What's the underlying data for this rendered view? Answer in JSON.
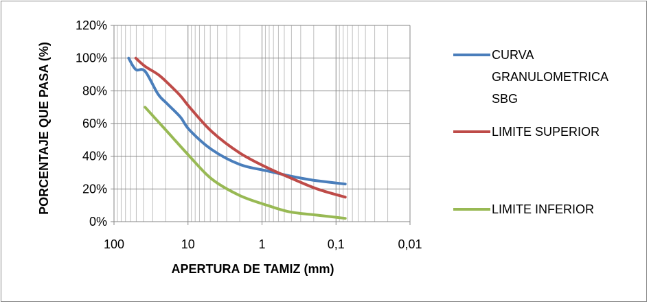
{
  "chart_data": {
    "type": "line",
    "xlabel": "APERTURA DE TAMIZ (mm)",
    "ylabel": "PORCENTAJE QUE PASA (%)",
    "x_scale": "log",
    "x_reversed": true,
    "xlim": [
      100,
      0.01
    ],
    "ylim": [
      0,
      120
    ],
    "x_ticks": [
      100,
      10,
      1,
      0.1,
      0.01
    ],
    "x_tick_labels": [
      "100",
      "10",
      "1",
      "0,1",
      "0,01"
    ],
    "y_ticks": [
      0,
      20,
      40,
      60,
      80,
      100,
      120
    ],
    "y_tick_labels": [
      "0%",
      "20%",
      "40%",
      "60%",
      "80%",
      "100%",
      "120%"
    ],
    "grid": true,
    "legend_position": "right",
    "series": [
      {
        "name": "CURVA GRANULOMETRICA SBG",
        "color": "#4a7ebb",
        "legend_lines": [
          "CURVA",
          "GRANULOMETRICA",
          "SBG"
        ],
        "x": [
          63.5,
          50.8,
          38.1,
          25.4,
          19.05,
          12.7,
          9.525,
          4.76,
          2.0,
          0.85,
          0.425,
          0.25,
          0.18,
          0.075
        ],
        "y": [
          100,
          93,
          92,
          78,
          72,
          64,
          56,
          44,
          35,
          31,
          28,
          26,
          25,
          23
        ]
      },
      {
        "name": "LIMITE SUPERIOR",
        "color": "#be4b48",
        "legend_lines": [
          "LIMITE SUPERIOR"
        ],
        "x": [
          50.8,
          38.1,
          25.4,
          19.05,
          12.7,
          9.525,
          4.76,
          2.0,
          0.85,
          0.425,
          0.18,
          0.075
        ],
        "y": [
          100,
          95,
          90,
          85,
          77,
          70,
          55,
          42,
          33,
          27,
          20,
          15
        ]
      },
      {
        "name": "LIMITE INFERIOR",
        "color": "#98b954",
        "legend_lines": [
          "LIMITE INFERIOR"
        ],
        "x": [
          38.1,
          19.05,
          9.525,
          4.76,
          2.0,
          0.85,
          0.425,
          0.18,
          0.075
        ],
        "y": [
          70,
          55,
          40,
          26,
          16,
          10,
          6,
          4,
          2
        ]
      }
    ]
  }
}
